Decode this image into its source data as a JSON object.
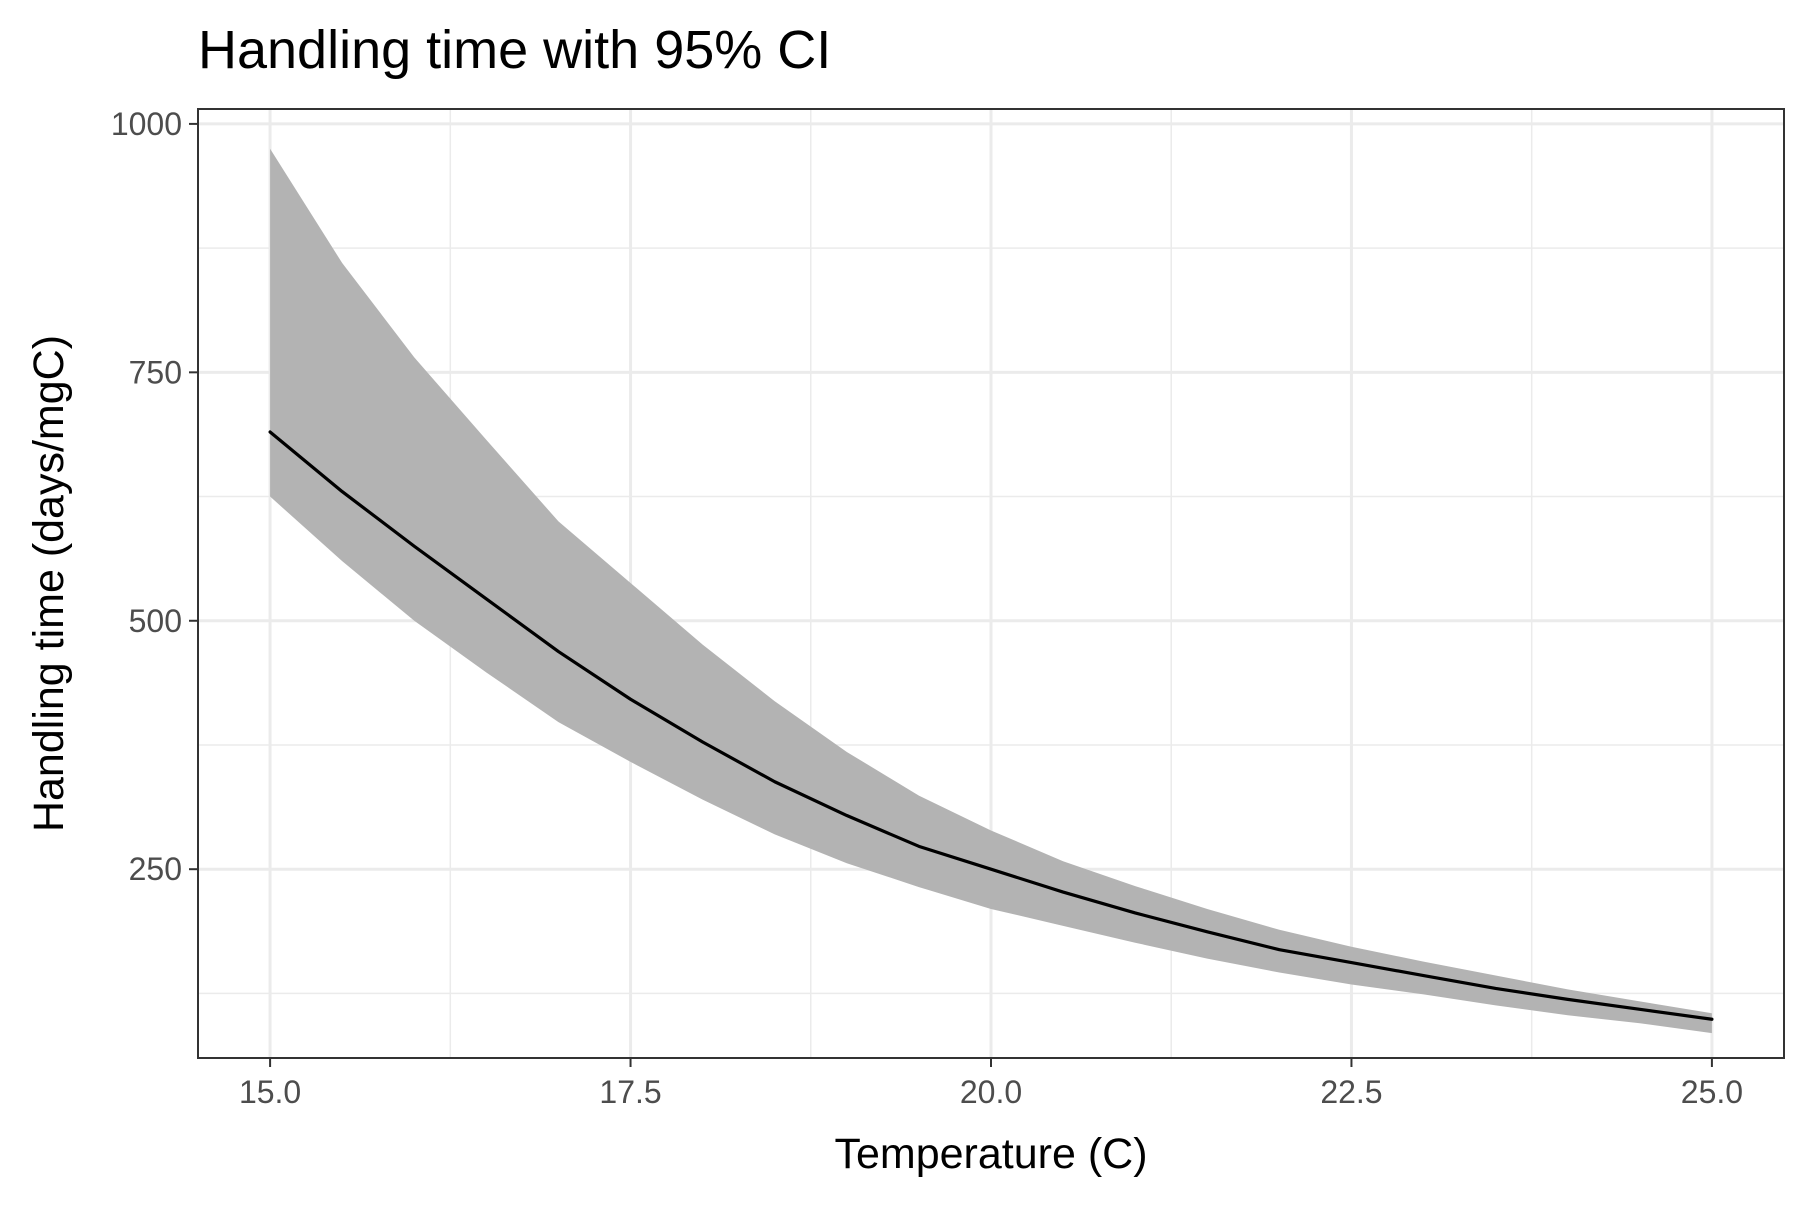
{
  "chart_data": {
    "type": "line",
    "title": "Handling time with 95% CI",
    "xlabel": "Temperature (C)",
    "ylabel": "Handling time (days/mgC)",
    "xlim": [
      14.5,
      25.5
    ],
    "ylim": [
      60,
      1015
    ],
    "x_ticks": [
      15.0,
      17.5,
      20.0,
      22.5,
      25.0
    ],
    "x_tick_labels": [
      "15.0",
      "17.5",
      "20.0",
      "22.5",
      "25.0"
    ],
    "y_ticks": [
      250,
      500,
      750,
      1000
    ],
    "y_tick_labels": [
      "250",
      "500",
      "750",
      "1000"
    ],
    "x_minor_ticks": [
      16.25,
      18.75,
      21.25,
      23.75
    ],
    "y_minor_ticks": [
      125,
      375,
      625,
      875
    ],
    "grid": true,
    "legend": "none",
    "series": [
      {
        "type": "line",
        "color": "#000000",
        "x": [
          15.0,
          15.5,
          16.0,
          16.5,
          17.0,
          17.5,
          18.0,
          18.5,
          19.0,
          19.5,
          20.0,
          20.5,
          21.0,
          21.5,
          22.0,
          22.5,
          23.0,
          23.5,
          24.0,
          24.5,
          25.0
        ],
        "y": [
          690,
          630,
          575,
          522,
          469,
          421,
          378,
          338,
          304,
          273,
          250,
          227,
          206,
          187,
          169,
          156,
          143,
          130,
          119,
          109,
          99
        ]
      },
      {
        "type": "ribbon",
        "fill": "#b3b3b3",
        "x": [
          15.0,
          15.5,
          16.0,
          16.5,
          17.0,
          17.5,
          18.0,
          18.5,
          19.0,
          19.5,
          20.0,
          20.5,
          21.0,
          21.5,
          22.0,
          22.5,
          23.0,
          23.5,
          24.0,
          24.5,
          25.0
        ],
        "lower": [
          625,
          560,
          500,
          448,
          398,
          358,
          320,
          285,
          256,
          232,
          210,
          193,
          176,
          160,
          146,
          134,
          124,
          113,
          103,
          95,
          85
        ],
        "upper": [
          975,
          860,
          765,
          682,
          600,
          538,
          476,
          419,
          368,
          324,
          289,
          258,
          233,
          210,
          189,
          172,
          157,
          143,
          129,
          117,
          105
        ]
      }
    ]
  }
}
